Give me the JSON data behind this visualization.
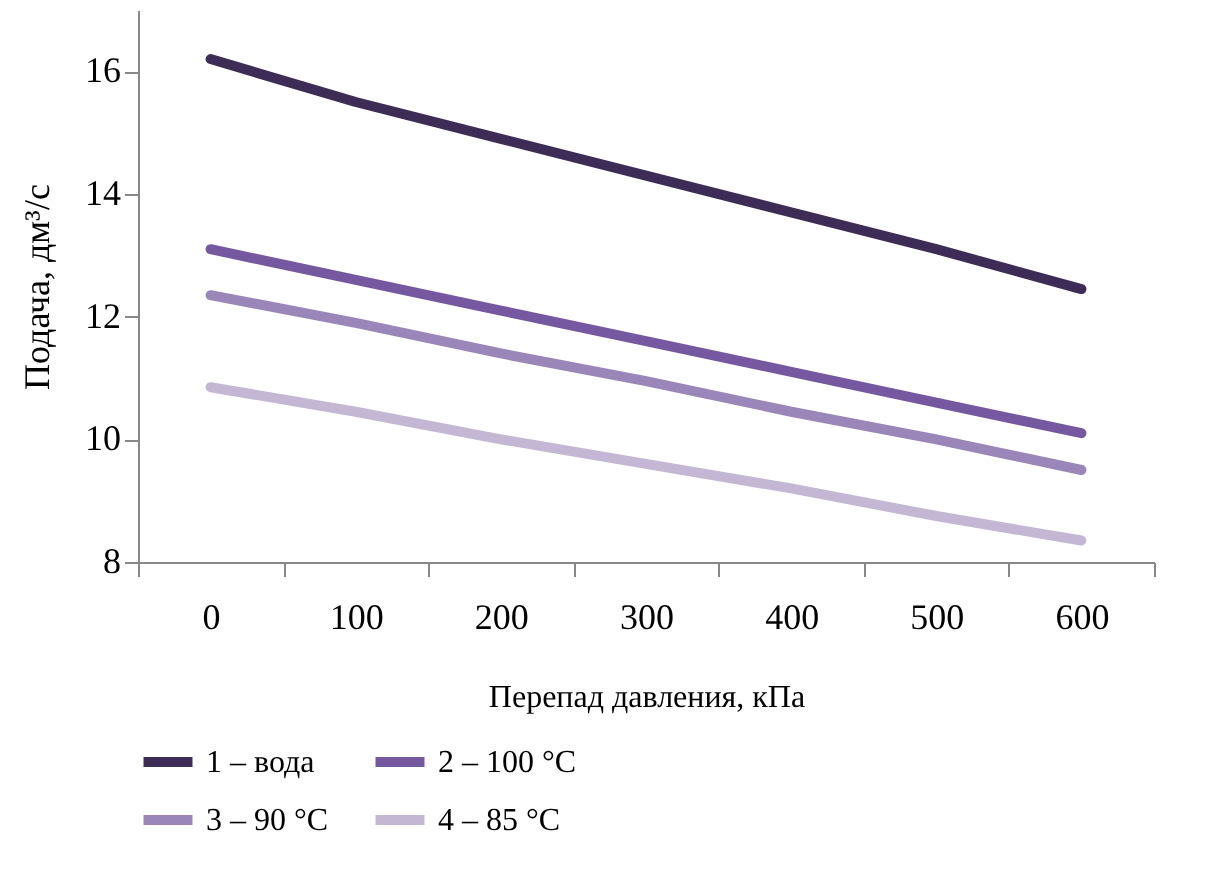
{
  "chart_data": {
    "type": "line",
    "xlabel": "Перепад давления, кПа",
    "ylabel": "Подача, дм³/с",
    "categories": [
      "0",
      "100",
      "200",
      "300",
      "400",
      "500",
      "600"
    ],
    "series": [
      {
        "name": "1 – вода",
        "color": "#3d2c55",
        "values": [
          16.2,
          15.5,
          14.9,
          14.3,
          13.7,
          13.1,
          12.45
        ]
      },
      {
        "name": "2 – 100 °C",
        "color": "#7558a0",
        "values": [
          13.1,
          12.6,
          12.1,
          11.6,
          11.1,
          10.6,
          10.1
        ]
      },
      {
        "name": "3 – 90 °C",
        "color": "#9a86b8",
        "values": [
          12.35,
          11.9,
          11.4,
          10.95,
          10.45,
          10.0,
          9.5
        ]
      },
      {
        "name": "4  – 85 °C",
        "color": "#c3b7d4",
        "values": [
          10.85,
          10.45,
          10.0,
          9.6,
          9.2,
          8.75,
          8.35
        ]
      }
    ],
    "ylim": [
      8,
      17
    ],
    "yticks": [
      8,
      10,
      12,
      14,
      16
    ],
    "grid": false,
    "legend": "bottom",
    "marker": "none",
    "line_style": "solid"
  }
}
